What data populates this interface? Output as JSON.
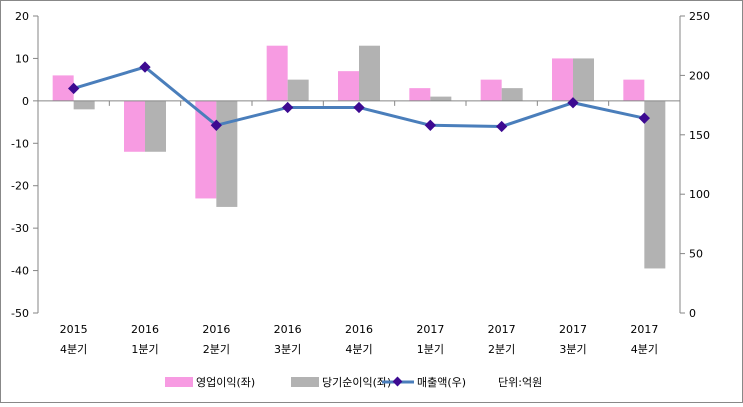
{
  "chart_data": {
    "type": "bar+line",
    "categories": [
      [
        "2015",
        "4분기"
      ],
      [
        "2016",
        "1분기"
      ],
      [
        "2016",
        "2분기"
      ],
      [
        "2016",
        "3분기"
      ],
      [
        "2016",
        "4분기"
      ],
      [
        "2017",
        "1분기"
      ],
      [
        "2017",
        "2분기"
      ],
      [
        "2017",
        "3분기"
      ],
      [
        "2017",
        "4분기"
      ]
    ],
    "series": [
      {
        "name": "영업이익(좌)",
        "type": "bar",
        "axis": "left",
        "color": "#f79be2",
        "values": [
          6,
          -12,
          -23,
          13,
          7,
          3,
          5,
          10,
          5
        ]
      },
      {
        "name": "당기순이익(좌)",
        "type": "bar",
        "axis": "left",
        "color": "#b2b2b2",
        "values": [
          -2,
          -12,
          -25,
          5,
          13,
          1,
          3,
          10,
          -39.5
        ]
      },
      {
        "name": "매출액(우)",
        "type": "line",
        "axis": "right",
        "color": "#4a7ebb",
        "marker_color": "#3d0a91",
        "values": [
          189,
          207,
          158,
          173,
          173,
          158,
          157,
          177,
          164
        ]
      }
    ],
    "left_axis": {
      "range": [
        -50,
        20
      ],
      "ticks": [
        20,
        10,
        0,
        -10,
        -20,
        -30,
        -40,
        -50
      ]
    },
    "right_axis": {
      "range": [
        0,
        250
      ],
      "ticks": [
        250,
        200,
        150,
        100,
        50,
        0
      ]
    },
    "unit_note": "단위:억원",
    "legend_position": "bottom",
    "grid": false
  }
}
